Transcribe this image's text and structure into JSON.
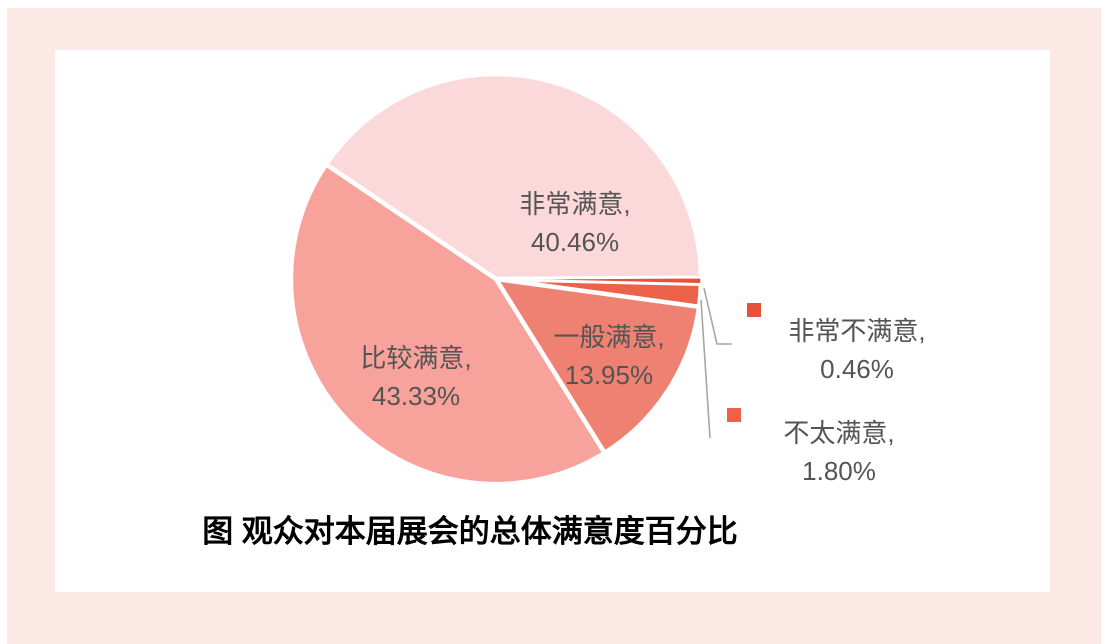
{
  "page": {
    "background_color": "#FCE9E6",
    "card_background_color": "#FFFFFF"
  },
  "chart_data": {
    "type": "pie",
    "title": "图 观众对本届展会的总体满意度百分比",
    "legend_position": "none",
    "start_angle_deg_clockwise_from_12": 304,
    "direction": "clockwise",
    "text_color": "#545454",
    "leader_line_color": "#A6A6A6",
    "slices": [
      {
        "name": "非常满意",
        "value": 40.46,
        "label": "非常满意,",
        "pct_label": "40.46%",
        "color": "#FBD9DA",
        "label_position": "inside"
      },
      {
        "name": "非常不满意",
        "value": 0.46,
        "label": "非常不满意,",
        "pct_label": "0.46%",
        "color": "#E7503A",
        "label_position": "outside"
      },
      {
        "name": "不太满意",
        "value": 1.8,
        "label": "不太满意,",
        "pct_label": "1.80%",
        "color": "#EC614A",
        "label_position": "outside"
      },
      {
        "name": "一般满意",
        "value": 13.95,
        "label": "一般满意,",
        "pct_label": "13.95%",
        "color": "#EF8173",
        "label_position": "inside"
      },
      {
        "name": "比较满意",
        "value": 43.33,
        "label": "比较满意,",
        "pct_label": "43.33%",
        "color": "#F7A29A",
        "label_position": "inside"
      }
    ]
  }
}
